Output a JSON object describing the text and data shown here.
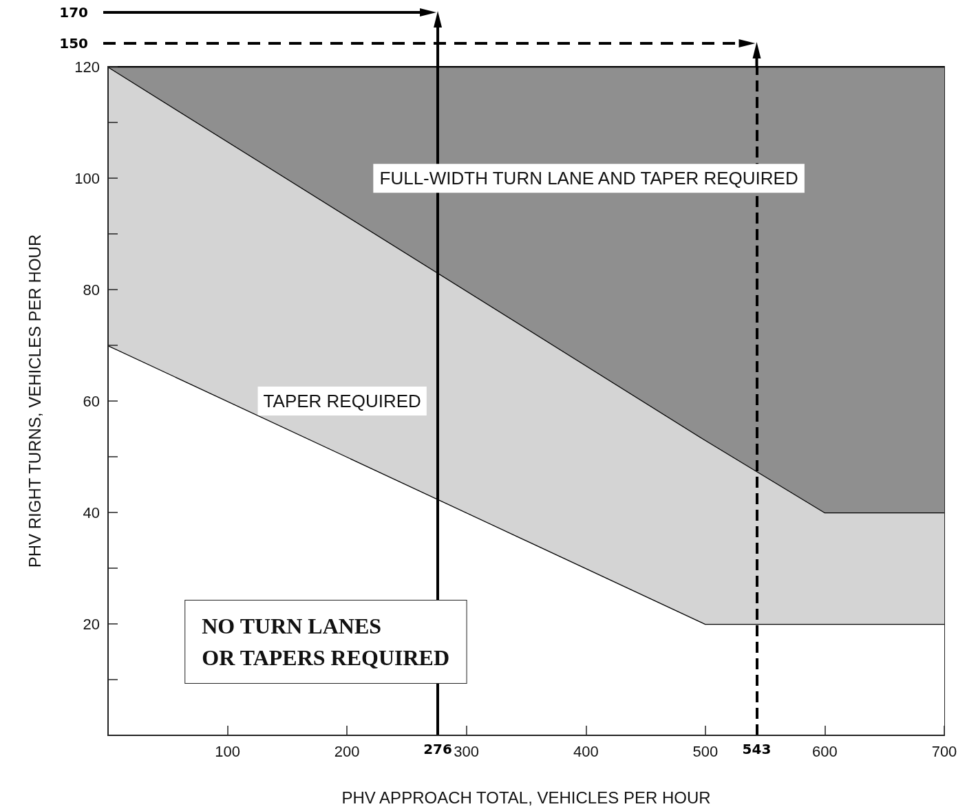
{
  "chart_data": {
    "type": "area",
    "stacked": true,
    "xlabel": "PHV APPROACH TOTAL, VEHICLES PER HOUR",
    "ylabel": "PHV RIGHT TURNS, VEHICLES PER HOUR",
    "x": [
      0,
      500,
      600,
      700
    ],
    "series": [
      {
        "color": "#ffffff",
        "values": [
          70,
          20,
          20,
          20
        ]
      },
      {
        "color": "#d4d4d4",
        "values": [
          50,
          33,
          20,
          20
        ]
      },
      {
        "color": "#8f8f8f",
        "values": [
          0,
          67,
          80,
          80
        ]
      }
    ],
    "xlim": [
      0,
      700
    ],
    "xticks": [
      100,
      200,
      300,
      400,
      500,
      600,
      700
    ],
    "ylim": [
      0,
      120
    ],
    "yticks": [
      {
        "value": 10,
        "label": null
      },
      20,
      {
        "value": 30,
        "label": null
      },
      40,
      {
        "value": 50,
        "label": null
      },
      60,
      {
        "value": 70,
        "label": null
      },
      80,
      {
        "value": 90,
        "label": null
      },
      100,
      {
        "value": 110,
        "label": null
      },
      120
    ],
    "grid": false,
    "line_style": "solid",
    "ref_lines": [
      {
        "axis": "x",
        "value": 276,
        "label": "276",
        "color": "#000000",
        "line_style": "solid"
      },
      {
        "axis": "x",
        "value": 543,
        "label": "543",
        "color": "#000000",
        "line_style": "dashed"
      }
    ],
    "annotations": [
      "FULL-WIDTH TURN LANE AND TAPER REQUIRED",
      "TAPER REQUIRED",
      "NO TURN LANES\nOR TAPERS REQUIRED",
      "170",
      "150"
    ]
  }
}
